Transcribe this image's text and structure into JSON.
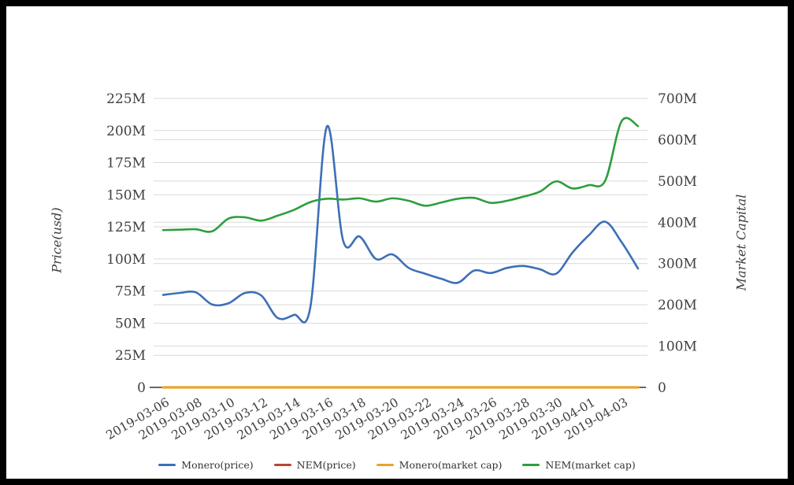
{
  "frame": {
    "border_color": "#000000",
    "background": "#ffffff"
  },
  "chart_data": {
    "type": "line",
    "title": "",
    "x_dates": [
      "2019-03-06",
      "2019-03-07",
      "2019-03-08",
      "2019-03-09",
      "2019-03-10",
      "2019-03-11",
      "2019-03-12",
      "2019-03-13",
      "2019-03-14",
      "2019-03-15",
      "2019-03-16",
      "2019-03-17",
      "2019-03-18",
      "2019-03-19",
      "2019-03-20",
      "2019-03-21",
      "2019-03-22",
      "2019-03-23",
      "2019-03-24",
      "2019-03-25",
      "2019-03-26",
      "2019-03-27",
      "2019-03-28",
      "2019-03-29",
      "2019-03-30",
      "2019-03-31",
      "2019-04-01",
      "2019-04-02",
      "2019-04-03",
      "2019-04-04"
    ],
    "x_tick_labels": [
      "2019-03-06",
      "2019-03-08",
      "2019-03-10",
      "2019-03-12",
      "2019-03-14",
      "2019-03-16",
      "2019-03-18",
      "2019-03-20",
      "2019-03-22",
      "2019-03-24",
      "2019-03-26",
      "2019-03-28",
      "2019-03-30",
      "2019-04-01",
      "2019-04-03"
    ],
    "left_axis": {
      "title": "Price(usd)",
      "min": 0,
      "max": 225000000,
      "tick_step": 25000000,
      "tick_labels": [
        "0",
        "25M",
        "50M",
        "75M",
        "100M",
        "125M",
        "150M",
        "175M",
        "200M",
        "225M"
      ]
    },
    "right_axis": {
      "title": "Market Capital",
      "min": 0,
      "max": 700000000,
      "tick_step": 100000000,
      "tick_labels": [
        "0",
        "100M",
        "200M",
        "300M",
        "400M",
        "500M",
        "600M",
        "700M"
      ]
    },
    "series": [
      {
        "name": "Monero(price)",
        "color": "#3d6fb8",
        "axis": "left",
        "values_millions": [
          72,
          73.5,
          74,
          64.5,
          65.5,
          73.5,
          71.5,
          54,
          56.5,
          63,
          203,
          114,
          117.5,
          100,
          103.5,
          93,
          88.5,
          84.5,
          81.5,
          91,
          89,
          93,
          94.5,
          92,
          88.5,
          105,
          118.5,
          129,
          113,
          92.5
        ]
      },
      {
        "name": "NEM(price)",
        "color": "#b8462f",
        "axis": "left",
        "values_millions": [
          0,
          0,
          0,
          0,
          0,
          0,
          0,
          0,
          0,
          0,
          0,
          0,
          0,
          0,
          0,
          0,
          0,
          0,
          0,
          0,
          0,
          0,
          0,
          0,
          0,
          0,
          0,
          0,
          0,
          0
        ]
      },
      {
        "name": "Monero(market cap)",
        "color": "#eba32b",
        "axis": "right",
        "values_millions": [
          0,
          0,
          0,
          0,
          0,
          0,
          0,
          0,
          0,
          0,
          0,
          0,
          0,
          0,
          0,
          0,
          0,
          0,
          0,
          0,
          0,
          0,
          0,
          0,
          0,
          0,
          0,
          0,
          0,
          0
        ]
      },
      {
        "name": "NEM(market cap)",
        "color": "#2e9e3d",
        "axis": "right",
        "values_millions": [
          381,
          382,
          383,
          378,
          409,
          412,
          404,
          416,
          430,
          449,
          457,
          455,
          458,
          450,
          458,
          452,
          440,
          448,
          457,
          459,
          447,
          452,
          462,
          474,
          499,
          482,
          490,
          501,
          645,
          633
        ]
      }
    ],
    "grid": true,
    "grid_color": "#d9d9d9",
    "axis_line_color": "#34353f",
    "text_color": "#3f3f3f",
    "legend_position": "bottom"
  }
}
